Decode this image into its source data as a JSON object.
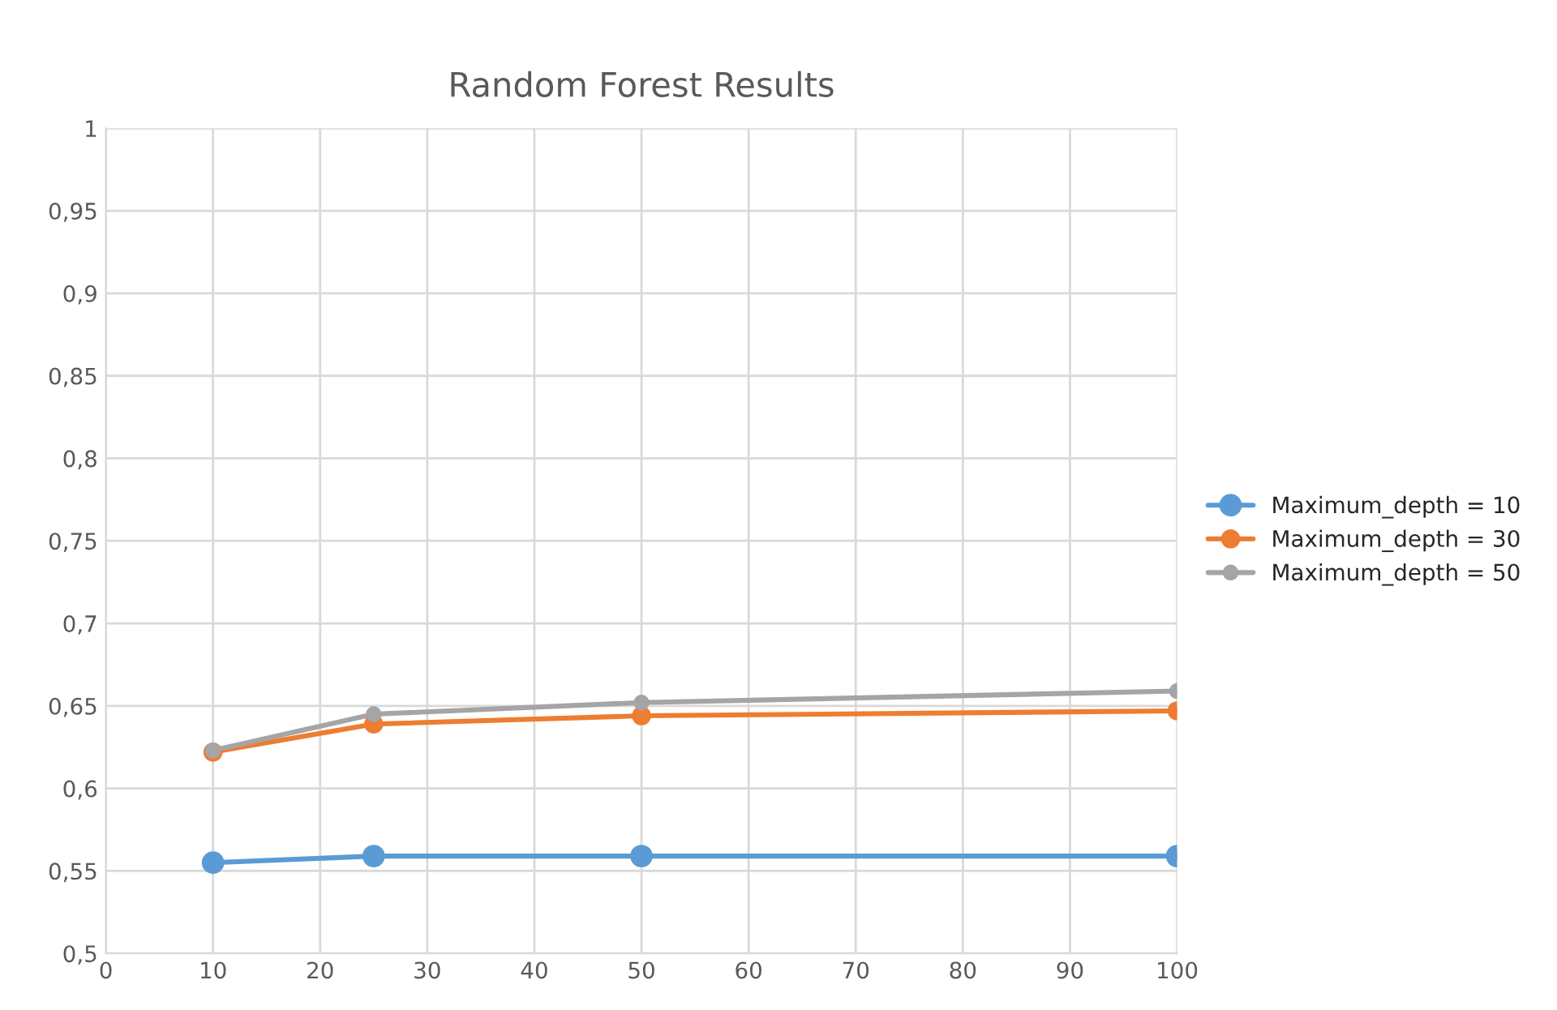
{
  "chart_data": {
    "type": "line",
    "title": "Random Forest Results",
    "x": [
      10,
      25,
      50,
      100
    ],
    "series": [
      {
        "name": "Maximum_depth = 10",
        "color": "#5b9bd5",
        "values": [
          0.555,
          0.559,
          0.559,
          0.559
        ]
      },
      {
        "name": "Maximum_depth = 30",
        "color": "#ed7d31",
        "values": [
          0.622,
          0.639,
          0.644,
          0.647
        ]
      },
      {
        "name": "Maximum_depth = 50",
        "color": "#a5a5a5",
        "values": [
          0.623,
          0.645,
          0.652,
          0.659
        ]
      }
    ],
    "xlim": [
      0,
      100
    ],
    "xticks": [
      0,
      10,
      20,
      30,
      40,
      50,
      60,
      70,
      80,
      90,
      100
    ],
    "ylim": [
      0.5,
      1
    ],
    "yticks": [
      {
        "value": 0.5,
        "label": "0,5"
      },
      {
        "value": 0.55,
        "label": "0,55"
      },
      {
        "value": 0.6,
        "label": "0,6"
      },
      {
        "value": 0.65,
        "label": "0,65"
      },
      {
        "value": 0.7,
        "label": "0,7"
      },
      {
        "value": 0.75,
        "label": "0,75"
      },
      {
        "value": 0.8,
        "label": "0,8"
      },
      {
        "value": 0.85,
        "label": "0,85"
      },
      {
        "value": 0.9,
        "label": "0,9"
      },
      {
        "value": 0.95,
        "label": "0,95"
      },
      {
        "value": 1,
        "label": "1"
      }
    ],
    "grid": true,
    "legend": "right",
    "marker": "circle",
    "line_style": "solid"
  }
}
